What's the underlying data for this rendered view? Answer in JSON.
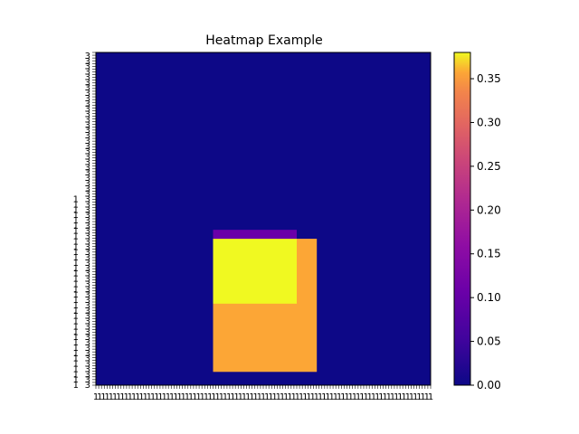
{
  "chart_data": {
    "type": "heatmap",
    "title": "Heatmap Example",
    "xlabel": "",
    "ylabel": "",
    "colormap": "plasma",
    "colors": {
      "background": "#0d0887",
      "bright": "#f0f921",
      "mid_orange": "#fca636",
      "purple": "#6a00a8"
    },
    "grid": false,
    "colorbar": {
      "vmin": 0.0,
      "vmax": 0.38,
      "ticks": [
        "0.00",
        "0.05",
        "0.10",
        "0.15",
        "0.20",
        "0.25",
        "0.30",
        "0.35"
      ]
    },
    "regions": [
      {
        "label": "field",
        "x_range": [
          0,
          1
        ],
        "y_range": [
          0,
          1
        ],
        "value": 0.0
      },
      {
        "label": "orange block",
        "x_range": [
          0.35,
          0.66
        ],
        "y_range": [
          0.04,
          0.44
        ],
        "value": 0.3
      },
      {
        "label": "bright block",
        "x_range": [
          0.35,
          0.6
        ],
        "y_range": [
          0.245,
          0.44
        ],
        "value": 0.38
      },
      {
        "label": "purple strip",
        "x_range": [
          0.35,
          0.6
        ],
        "y_range": [
          0.44,
          0.467
        ],
        "value": 0.1
      }
    ]
  }
}
